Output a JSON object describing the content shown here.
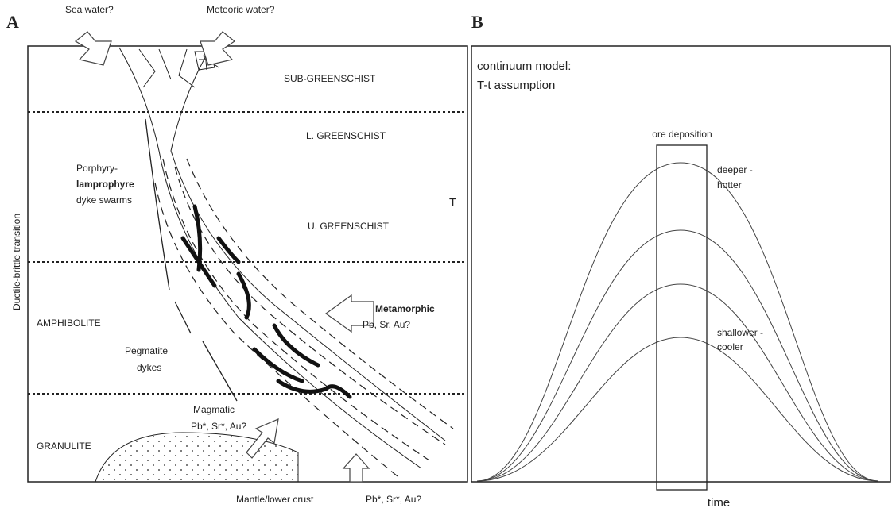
{
  "panel_a": {
    "label": "A",
    "sea_water": "Sea water?",
    "meteoric_water": "Meteoric water?",
    "zones": [
      "SUB-GREENSCHIST",
      "L. GREENSCHIST",
      "U. GREENSCHIST",
      "AMPHIBOLITE",
      "GRANULITE"
    ],
    "transition": "Ductile-brittle transition",
    "porphyry": [
      "Porphyry-",
      "lamprophyre",
      "dyke swarms"
    ],
    "pegmatite": [
      "Pegmatite",
      "dykes"
    ],
    "metamorphic": [
      "Metamorphic",
      "Pb, Sr, Au?"
    ],
    "magmatic": [
      "Magmatic",
      "Pb*, Sr*, Au?"
    ],
    "mantle": "Mantle/lower crust",
    "mantle_isotopes": "Pb*, Sr*, Au?"
  },
  "panel_b": {
    "label": "B",
    "title": [
      "continuum model:",
      "T-t assumption"
    ],
    "ore_deposition": "ore deposition",
    "deeper": [
      "deeper -",
      "hotter"
    ],
    "shallower": [
      "shallower -",
      "cooler"
    ],
    "y_axis": "T",
    "x_axis": "time"
  }
}
